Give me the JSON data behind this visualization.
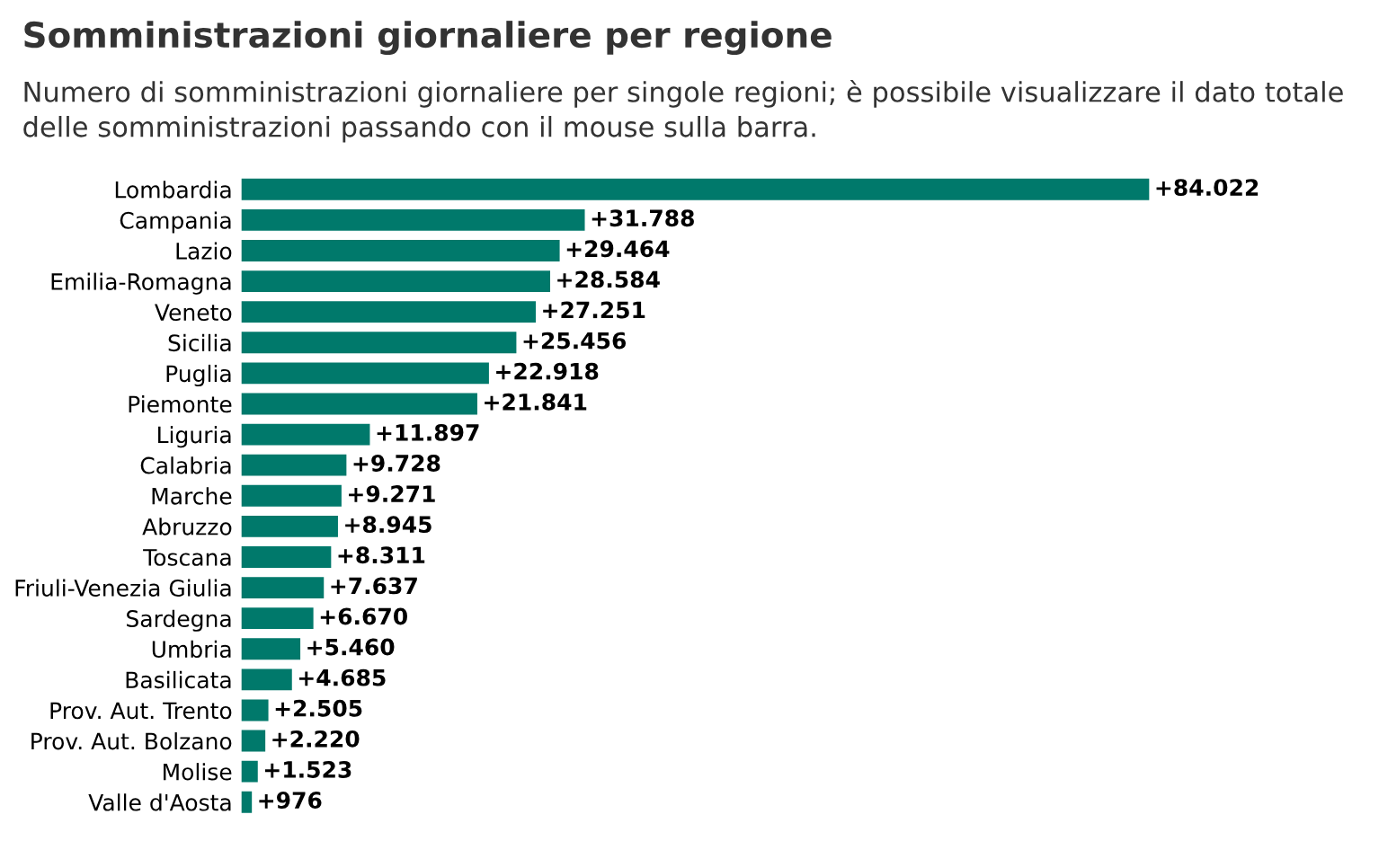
{
  "chart_data": {
    "type": "bar",
    "orientation": "horizontal",
    "title": "Somministrazioni giornaliere per regione",
    "subtitle": "Numero di somministrazioni giornaliere per singole regioni; è possibile visualizzare il dato totale delle somministrazioni passando con il mouse sulla barra.",
    "categories": [
      "Lombardia",
      "Campania",
      "Lazio",
      "Emilia-Romagna",
      "Veneto",
      "Sicilia",
      "Puglia",
      "Piemonte",
      "Liguria",
      "Calabria",
      "Marche",
      "Abruzzo",
      "Toscana",
      "Friuli-Venezia Giulia",
      "Sardegna",
      "Umbria",
      "Basilicata",
      "Prov. Aut. Trento",
      "Prov. Aut. Bolzano",
      "Molise",
      "Valle d'Aosta"
    ],
    "values": [
      84022,
      31788,
      29464,
      28584,
      27251,
      25456,
      22918,
      21841,
      11897,
      9728,
      9271,
      8945,
      8311,
      7637,
      6670,
      5460,
      4685,
      2505,
      2220,
      1523,
      976
    ],
    "value_labels": [
      "+84.022",
      "+31.788",
      "+29.464",
      "+28.584",
      "+27.251",
      "+25.456",
      "+22.918",
      "+21.841",
      "+11.897",
      "+9.728",
      "+9.271",
      "+8.945",
      "+8.311",
      "+7.637",
      "+6.670",
      "+5.460",
      "+4.685",
      "+2.505",
      "+2.220",
      "+1.523",
      "+976"
    ],
    "color": "#00796b",
    "tick_labels": "y",
    "grid": false,
    "legend": false
  }
}
